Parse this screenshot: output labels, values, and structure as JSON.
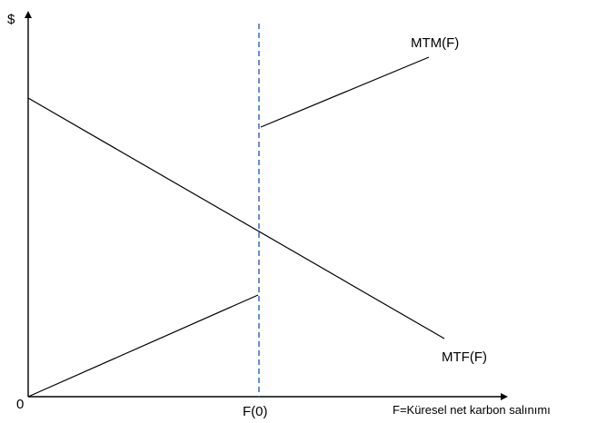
{
  "diagram": {
    "y_axis_label": "$",
    "x_axis_label": "F=Küresel net karbon salınımı",
    "origin_label": "0",
    "threshold_label": "F(0)",
    "curve_mtm_label": "MTM(F)",
    "curve_mtf_label": "MTF(F)"
  },
  "colors": {
    "axis": "#000000",
    "curves": "#000000",
    "threshold_line": "#4472c4"
  }
}
